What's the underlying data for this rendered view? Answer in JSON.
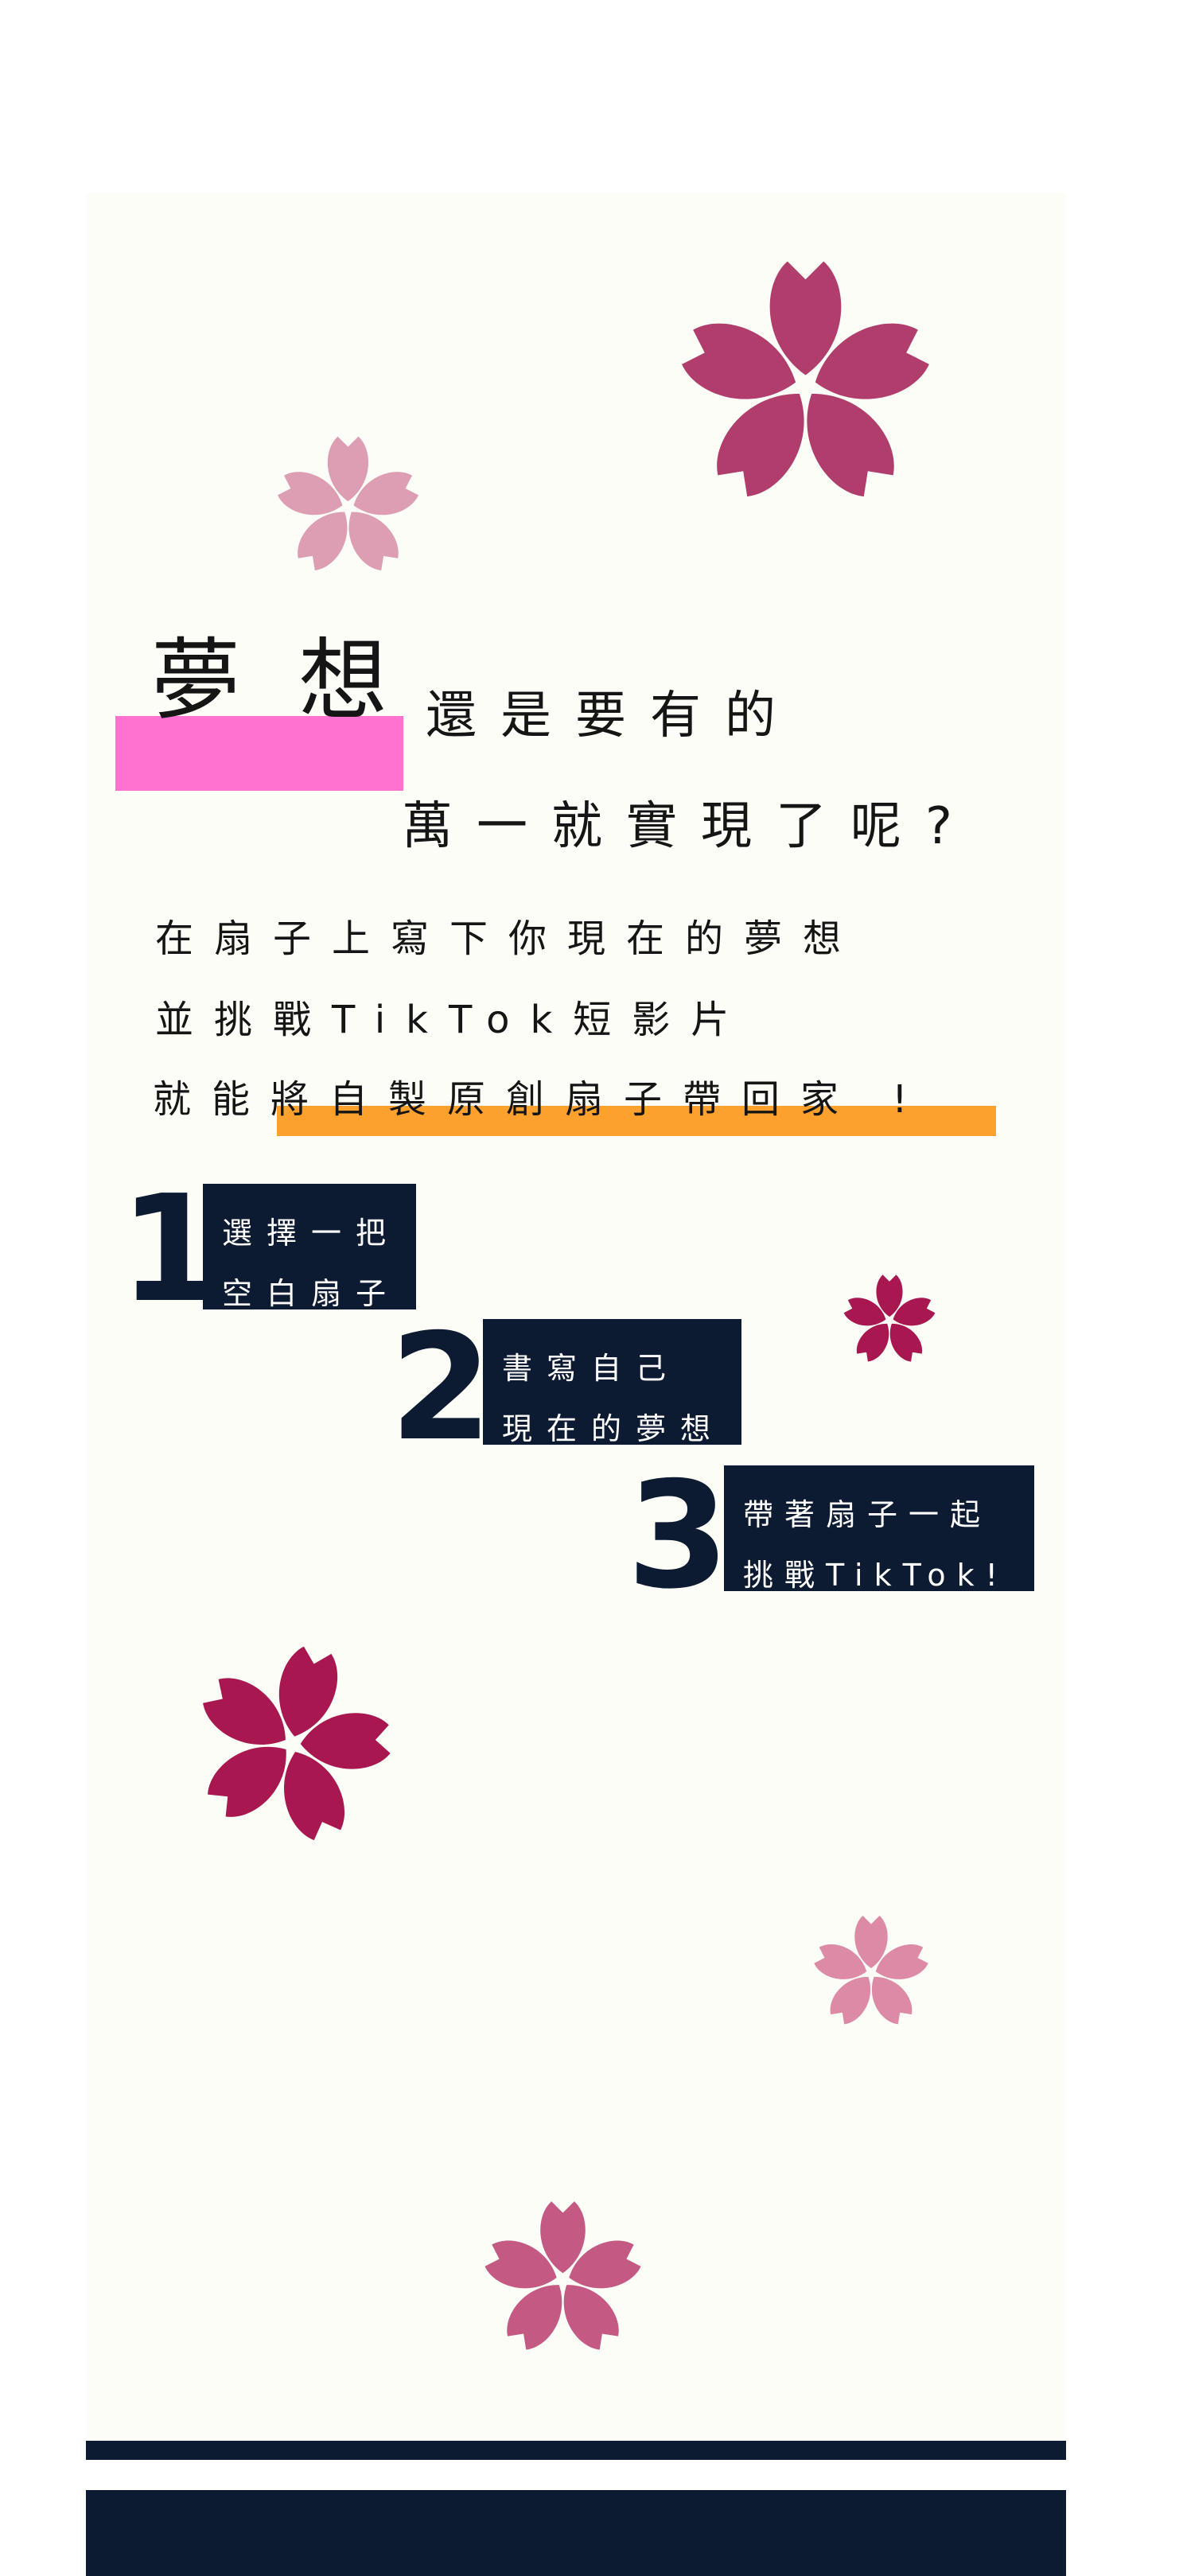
{
  "headline": {
    "big_char_1": "夢",
    "big_char_2": "想",
    "line1": "還是要有的",
    "line2": "萬一就實現了呢?"
  },
  "body": {
    "line1": "在扇子上寫下你現在的夢想",
    "line2": "並挑戰TikTok短影片",
    "line3": "就能將自製原創扇子帶回家 !"
  },
  "steps": [
    {
      "number": "1",
      "line1": "選擇一把",
      "line2": "空白扇子"
    },
    {
      "number": "2",
      "line1": "書寫自己",
      "line2": "現在的夢想"
    },
    {
      "number": "3",
      "line1": "帶著扇子一起",
      "line2": "挑戰TikTok!"
    }
  ],
  "colors": {
    "background": "#fdfdf7",
    "navy": "#0c1a32",
    "pink_highlight": "#ff72cf",
    "orange_highlight": "#fca12d",
    "flower_dark": "#b03d6b",
    "flower_crimson": "#a8174f",
    "flower_light": "#dd9db3",
    "flower_medium": "#c45a84"
  },
  "icons": [
    "sakura-flower-icon"
  ]
}
